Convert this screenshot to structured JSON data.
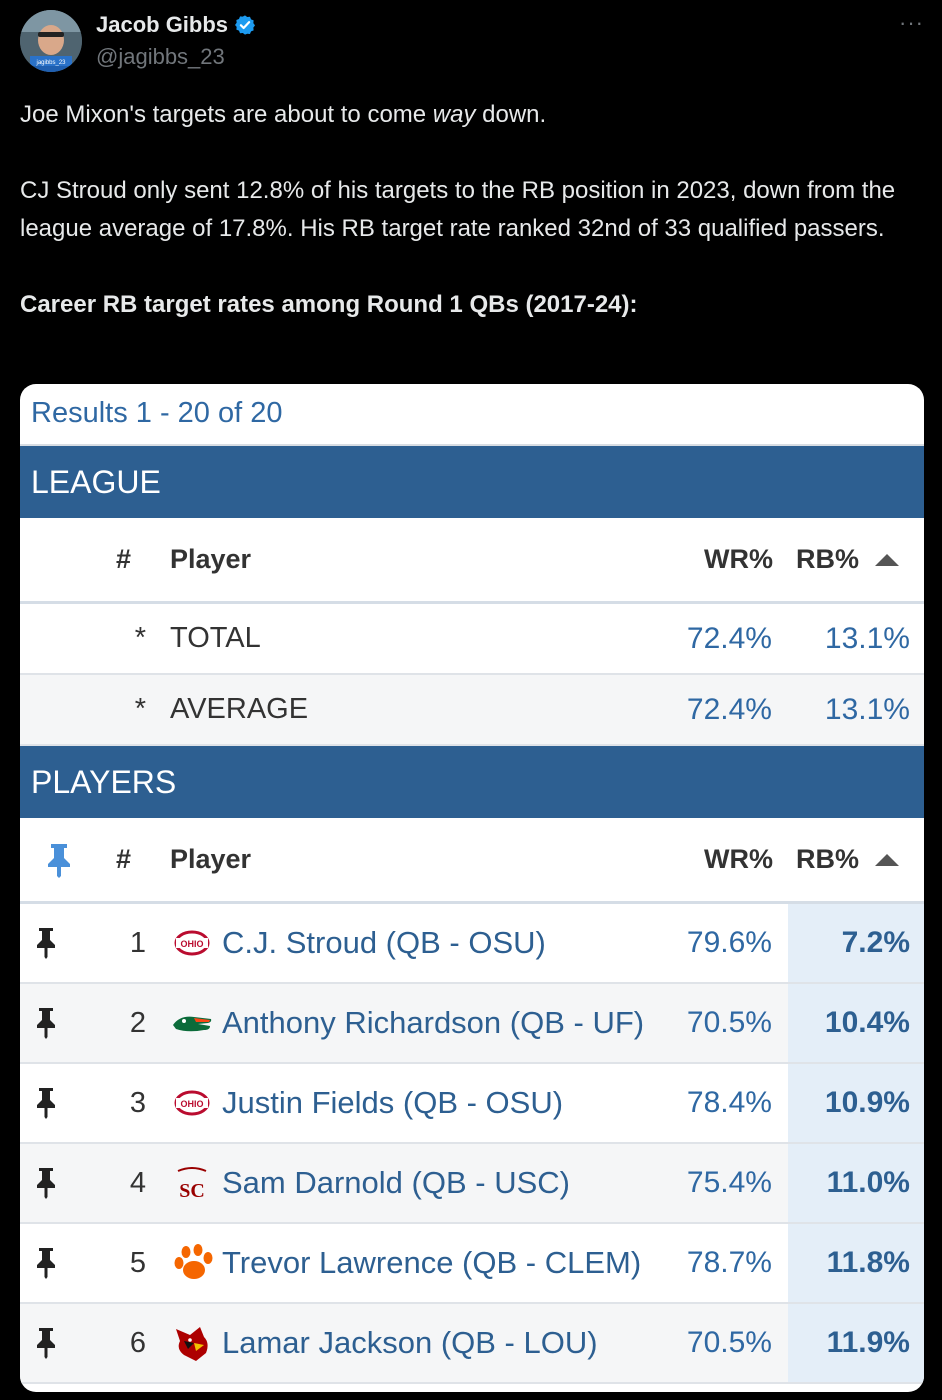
{
  "author": {
    "display_name": "Jacob Gibbs",
    "handle": "@jagibbs_23",
    "verified": true,
    "avatar_caption": "jagibbs_23"
  },
  "more_label": "···",
  "tweet": {
    "line1_before": "Joe Mixon's targets are about to come ",
    "line1_em": "way",
    "line1_after": " down.",
    "para2": "CJ Stroud only sent 12.8% of his targets to the RB position in 2023, down from the league average of 17.8%. His RB target rate ranked 32nd of 33 qualified passers.",
    "heading": "Career RB target rates among Round 1 QBs (2017-24):"
  },
  "table": {
    "results": "Results 1 - 20 of 20",
    "league_label": "LEAGUE",
    "players_label": "PLAYERS",
    "headers": {
      "num": "#",
      "player": "Player",
      "wr": "WR%",
      "rb": "RB%",
      "sort_icon": "sort-up-triangle-icon"
    },
    "summary": [
      {
        "mark": "*",
        "label": "TOTAL",
        "wr": "72.4%",
        "rb": "13.1%"
      },
      {
        "mark": "*",
        "label": "AVERAGE",
        "wr": "72.4%",
        "rb": "13.1%"
      }
    ],
    "players": [
      {
        "rank": "1",
        "name": "C.J. Stroud (QB - OSU)",
        "wr": "79.6%",
        "rb": "7.2%",
        "logo": "ohio-state-logo"
      },
      {
        "rank": "2",
        "name": "Anthony Richardson (QB - UF)",
        "wr": "70.5%",
        "rb": "10.4%",
        "logo": "florida-gator-logo"
      },
      {
        "rank": "3",
        "name": "Justin Fields (QB - OSU)",
        "wr": "78.4%",
        "rb": "10.9%",
        "logo": "ohio-state-logo"
      },
      {
        "rank": "4",
        "name": "Sam Darnold (QB - USC)",
        "wr": "75.4%",
        "rb": "11.0%",
        "logo": "usc-trojans-logo"
      },
      {
        "rank": "5",
        "name": "Trevor Lawrence (QB - CLEM)",
        "wr": "78.7%",
        "rb": "11.8%",
        "logo": "clemson-paw-logo"
      },
      {
        "rank": "6",
        "name": "Lamar Jackson (QB - LOU)",
        "wr": "70.5%",
        "rb": "11.9%",
        "logo": "louisville-cardinal-logo"
      }
    ],
    "colors": {
      "header_blue": "#2d5f91",
      "link_blue": "#2f68a3",
      "rb_highlight": "#e4eef8"
    }
  }
}
